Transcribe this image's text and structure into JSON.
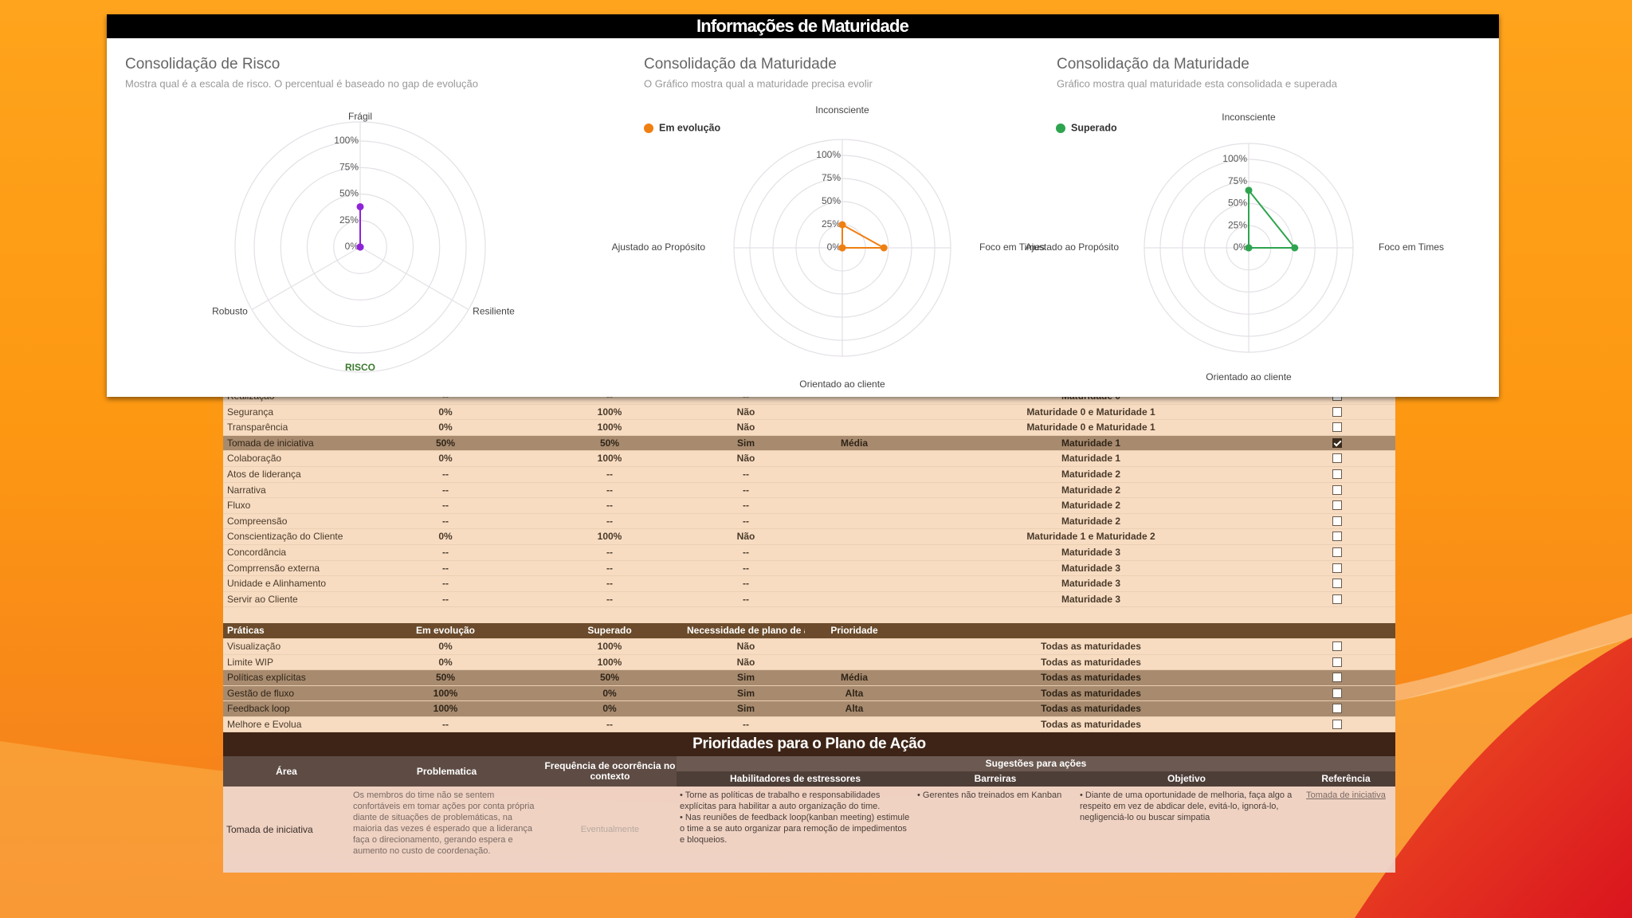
{
  "header": {
    "title": "Informações de Maturidade"
  },
  "chart_data": [
    {
      "type": "radar",
      "title": "Consolidação de Risco",
      "subtitle": "Mostra qual é a escala de risco. O percentual é baseado no gap de evolução",
      "categories": [
        "Frágil",
        "Resiliente",
        "Robusto"
      ],
      "series": [
        {
          "color": "#8e24d8",
          "values": [
            38,
            0,
            0
          ]
        }
      ],
      "axis_title": "RISCO",
      "ylim": [
        0,
        100
      ],
      "yticks": [
        {
          "value": 0,
          "label": "0%"
        },
        {
          "value": 25,
          "label": "25%"
        },
        {
          "value": 50,
          "label": "50%"
        },
        {
          "value": 75,
          "label": "75%"
        },
        {
          "value": 100,
          "label": "100%"
        }
      ],
      "grid": true,
      "legend": false
    },
    {
      "type": "radar",
      "title": "Consolidação da Maturidade",
      "subtitle": "O Gráfico mostra qual a maturidade precisa evolir",
      "categories": [
        "Inconsciente",
        "Foco em Times",
        "Orientado ao cliente",
        "Ajustado ao Propósito"
      ],
      "series": [
        {
          "name": "Em evolução",
          "color": "#f07f12",
          "values": [
            25,
            45,
            0,
            0
          ]
        }
      ],
      "ylim": [
        0,
        100
      ],
      "yticks": [
        {
          "value": 0,
          "label": "0%"
        },
        {
          "value": 25,
          "label": "25%"
        },
        {
          "value": 50,
          "label": "50%"
        },
        {
          "value": 75,
          "label": "75%"
        },
        {
          "value": 100,
          "label": "100%"
        }
      ],
      "grid": true,
      "legend": "top-left"
    },
    {
      "type": "radar",
      "title": "Consolidação da Maturidade",
      "subtitle": "Gráfico mostra qual maturidade esta consolidada e superada",
      "categories": [
        "Inconsciente",
        "Foco em Times",
        "Orientado ao cliente",
        "Ajustado ao Propósito"
      ],
      "series": [
        {
          "name": "Superado",
          "color": "#2ea44f",
          "values": [
            65,
            52,
            0,
            0
          ]
        }
      ],
      "ylim": [
        0,
        100
      ],
      "yticks": [
        {
          "value": 0,
          "label": "0%"
        },
        {
          "value": 25,
          "label": "25%"
        },
        {
          "value": 50,
          "label": "50%"
        },
        {
          "value": 75,
          "label": "75%"
        },
        {
          "value": 100,
          "label": "100%"
        }
      ],
      "grid": true,
      "legend": "top-left"
    }
  ],
  "maturity_table": {
    "rows": [
      {
        "pratica": "Realização",
        "em_evolucao": "--",
        "superado": "--",
        "necessidade": "--",
        "maturidade": "Maturidade 0",
        "checked": false,
        "highlight": false
      },
      {
        "pratica": "Segurança",
        "em_evolucao": "0%",
        "superado": "100%",
        "necessidade": "Não",
        "maturidade": "Maturidade 0 e Maturidade 1",
        "checked": false,
        "highlight": false
      },
      {
        "pratica": "Transparência",
        "em_evolucao": "0%",
        "superado": "100%",
        "necessidade": "Não",
        "maturidade": "Maturidade 0 e Maturidade 1",
        "checked": false,
        "highlight": false
      },
      {
        "pratica": "Tomada de iniciativa",
        "em_evolucao": "50%",
        "superado": "50%",
        "necessidade": "Sim",
        "prioridade": "Média",
        "maturidade": "Maturidade 1",
        "checked": true,
        "highlight": true
      },
      {
        "pratica": "Colaboração",
        "em_evolucao": "0%",
        "superado": "100%",
        "necessidade": "Não",
        "maturidade": "Maturidade 1",
        "checked": false,
        "highlight": false
      },
      {
        "pratica": "Atos de liderança",
        "em_evolucao": "--",
        "superado": "--",
        "necessidade": "--",
        "maturidade": "Maturidade 2",
        "checked": false,
        "highlight": false
      },
      {
        "pratica": "Narrativa",
        "em_evolucao": "--",
        "superado": "--",
        "necessidade": "--",
        "maturidade": "Maturidade 2",
        "checked": false,
        "highlight": false
      },
      {
        "pratica": "Fluxo",
        "em_evolucao": "--",
        "superado": "--",
        "necessidade": "--",
        "maturidade": "Maturidade 2",
        "checked": false,
        "highlight": false
      },
      {
        "pratica": "Compreensão",
        "em_evolucao": "--",
        "superado": "--",
        "necessidade": "--",
        "maturidade": "Maturidade 2",
        "checked": false,
        "highlight": false
      },
      {
        "pratica": "Conscientização do Cliente",
        "em_evolucao": "0%",
        "superado": "100%",
        "necessidade": "Não",
        "maturidade": "Maturidade 1 e Maturidade 2",
        "checked": false,
        "highlight": false
      },
      {
        "pratica": "Concordância",
        "em_evolucao": "--",
        "superado": "--",
        "necessidade": "--",
        "maturidade": "Maturidade 3",
        "checked": false,
        "highlight": false
      },
      {
        "pratica": "Comprrensão externa",
        "em_evolucao": "--",
        "superado": "--",
        "necessidade": "--",
        "maturidade": "Maturidade 3",
        "checked": false,
        "highlight": false
      },
      {
        "pratica": "Unidade e Alinhamento",
        "em_evolucao": "--",
        "superado": "--",
        "necessidade": "--",
        "maturidade": "Maturidade 3",
        "checked": false,
        "highlight": false
      },
      {
        "pratica": "Servir ao Cliente",
        "em_evolucao": "--",
        "superado": "--",
        "necessidade": "--",
        "maturidade": "Maturidade 3",
        "checked": false,
        "highlight": false
      }
    ]
  },
  "practices_table": {
    "columns": [
      "Práticas",
      "Em evolução",
      "Superado",
      "Necessidade de plano de ação",
      "Prioridade"
    ],
    "rows": [
      {
        "pratica": "Visualização",
        "em_evolucao": "0%",
        "superado": "100%",
        "necessidade": "Não",
        "maturidade": "Todas as maturidades",
        "checked": false,
        "highlight": false
      },
      {
        "pratica": "Limite WIP",
        "em_evolucao": "0%",
        "superado": "100%",
        "necessidade": "Não",
        "maturidade": "Todas as maturidades",
        "checked": false,
        "highlight": false
      },
      {
        "pratica": "Políticas explícitas",
        "em_evolucao": "50%",
        "superado": "50%",
        "necessidade": "Sim",
        "prioridade": "Média",
        "maturidade": "Todas as maturidades",
        "checked": false,
        "highlight": true
      },
      {
        "pratica": "Gestão de fluxo",
        "em_evolucao": "100%",
        "superado": "0%",
        "necessidade": "Sim",
        "prioridade": "Alta",
        "maturidade": "Todas as maturidades",
        "checked": false,
        "highlight": true
      },
      {
        "pratica": "Feedback loop",
        "em_evolucao": "100%",
        "superado": "0%",
        "necessidade": "Sim",
        "prioridade": "Alta",
        "maturidade": "Todas as maturidades",
        "checked": false,
        "highlight": true
      },
      {
        "pratica": "Melhore e Evolua",
        "em_evolucao": "--",
        "superado": "--",
        "necessidade": "--",
        "maturidade": "Todas as maturidades",
        "checked": false,
        "highlight": false
      }
    ]
  },
  "action_plan": {
    "title": "Prioridades para o Plano de Ação",
    "columns": {
      "area": "Área",
      "problematica": "Problematica",
      "frequencia": "Frequência de ocorrência no contexto",
      "sugestoes": "Sugestões para ações",
      "habilitadores": "Habilitadores de estressores",
      "barreiras": "Barreiras",
      "objetivo": "Objetivo",
      "referencia": "Referência"
    },
    "rows": [
      {
        "area": "Tomada de iniciativa",
        "problematica": "Os membros do time não se sentem confortáveis em tomar ações por conta própria diante de situações de problemáticas, na maioria das vezes é esperado que a liderança faça o direcionamento, gerando espera e aumento no custo de coordenação.",
        "frequencia": "Eventualmente",
        "habilitadores": [
          "Torne as políticas de trabalho e responsabilidades explícitas para habilitar a auto organização do time.",
          "Nas reuniões de feedback loop(kanban meeting) estimule o time a se auto organizar para remoção de impedimentos e bloqueios."
        ],
        "barreiras": [
          "Gerentes não treinados em Kanban"
        ],
        "objetivo": [
          "Diante de uma oportunidade de melhoria, faça algo a respeito em vez de abdicar dele, evitá-lo, ignorá-lo, negligenciá-lo ou buscar simpatia"
        ],
        "referencia": "Tomada de iniciativa"
      }
    ]
  }
}
